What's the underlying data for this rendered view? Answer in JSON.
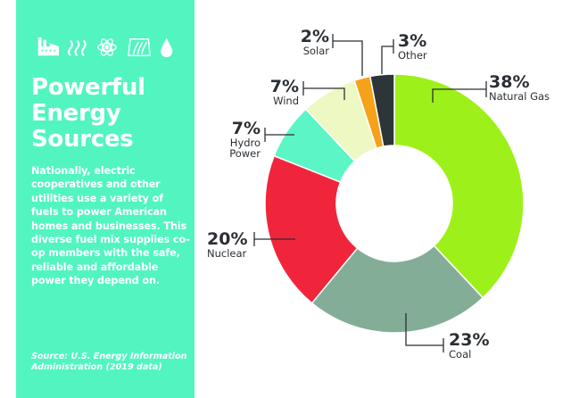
{
  "panel": {
    "icons": [
      "factory-icon",
      "heat-waves-icon",
      "atom-icon",
      "dam-icon",
      "water-drop-icon"
    ],
    "title_lines": [
      "Powerful",
      "Energy",
      "Sources"
    ],
    "body": "Nationally, electric cooperatives and other utilities use a variety of fuels to power American homes and businesses. This diverse fuel mix supplies co-op members with the safe, reliable and affordable power they depend on.",
    "source": "Source: U.S. Energy Information Administration (2019 data)",
    "background": "#52f5c0"
  },
  "chart_data": {
    "type": "pie",
    "donut": true,
    "title": "Powerful Energy Sources",
    "categories": [
      "Natural Gas",
      "Coal",
      "Nuclear",
      "Hydro Power",
      "Wind",
      "Solar",
      "Other"
    ],
    "values": [
      38,
      23,
      20,
      7,
      7,
      2,
      3
    ],
    "unit": "%",
    "labels": [
      {
        "pct": "38%",
        "name": "Natural Gas"
      },
      {
        "pct": "23%",
        "name": "Coal"
      },
      {
        "pct": "20%",
        "name": "Nuclear"
      },
      {
        "pct": "7%",
        "name": "Hydro Power"
      },
      {
        "pct": "7%",
        "name": "Wind"
      },
      {
        "pct": "2%",
        "name": "Solar"
      },
      {
        "pct": "3%",
        "name": "Other"
      }
    ],
    "colors": [
      "#9ef01a",
      "#84ad98",
      "#f0253c",
      "#5cf5c5",
      "#eef8c2",
      "#f5a21a",
      "#2e3538"
    ],
    "start": "top",
    "direction": "clockwise"
  }
}
